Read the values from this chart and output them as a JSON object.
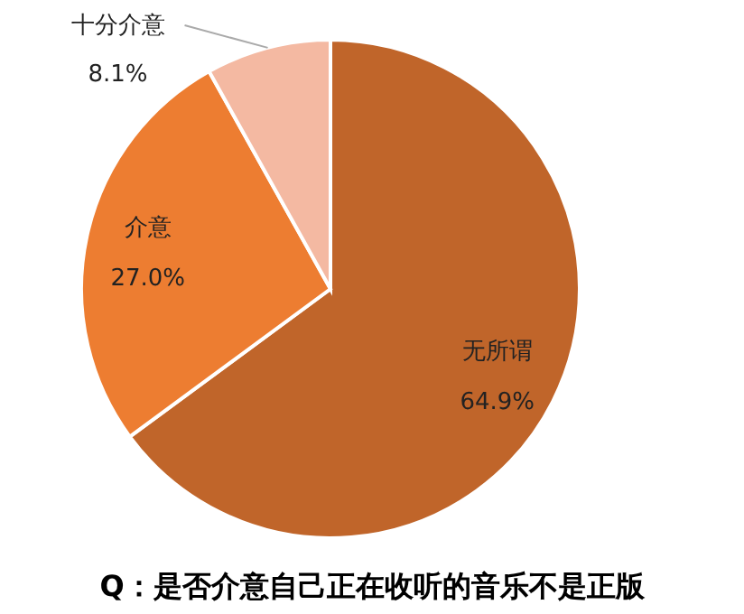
{
  "chart_data": {
    "type": "pie",
    "title": "Q：是否介意自己正在收听的音乐不是正版",
    "categories": [
      "无所谓",
      "介意",
      "十分介意"
    ],
    "values": [
      64.9,
      27.0,
      8.1
    ],
    "value_labels": [
      "64.9%",
      "27.0%",
      "8.1%"
    ],
    "colors": [
      "#c0652a",
      "#ed7d31",
      "#f4b9a2"
    ],
    "data_labels": true
  }
}
